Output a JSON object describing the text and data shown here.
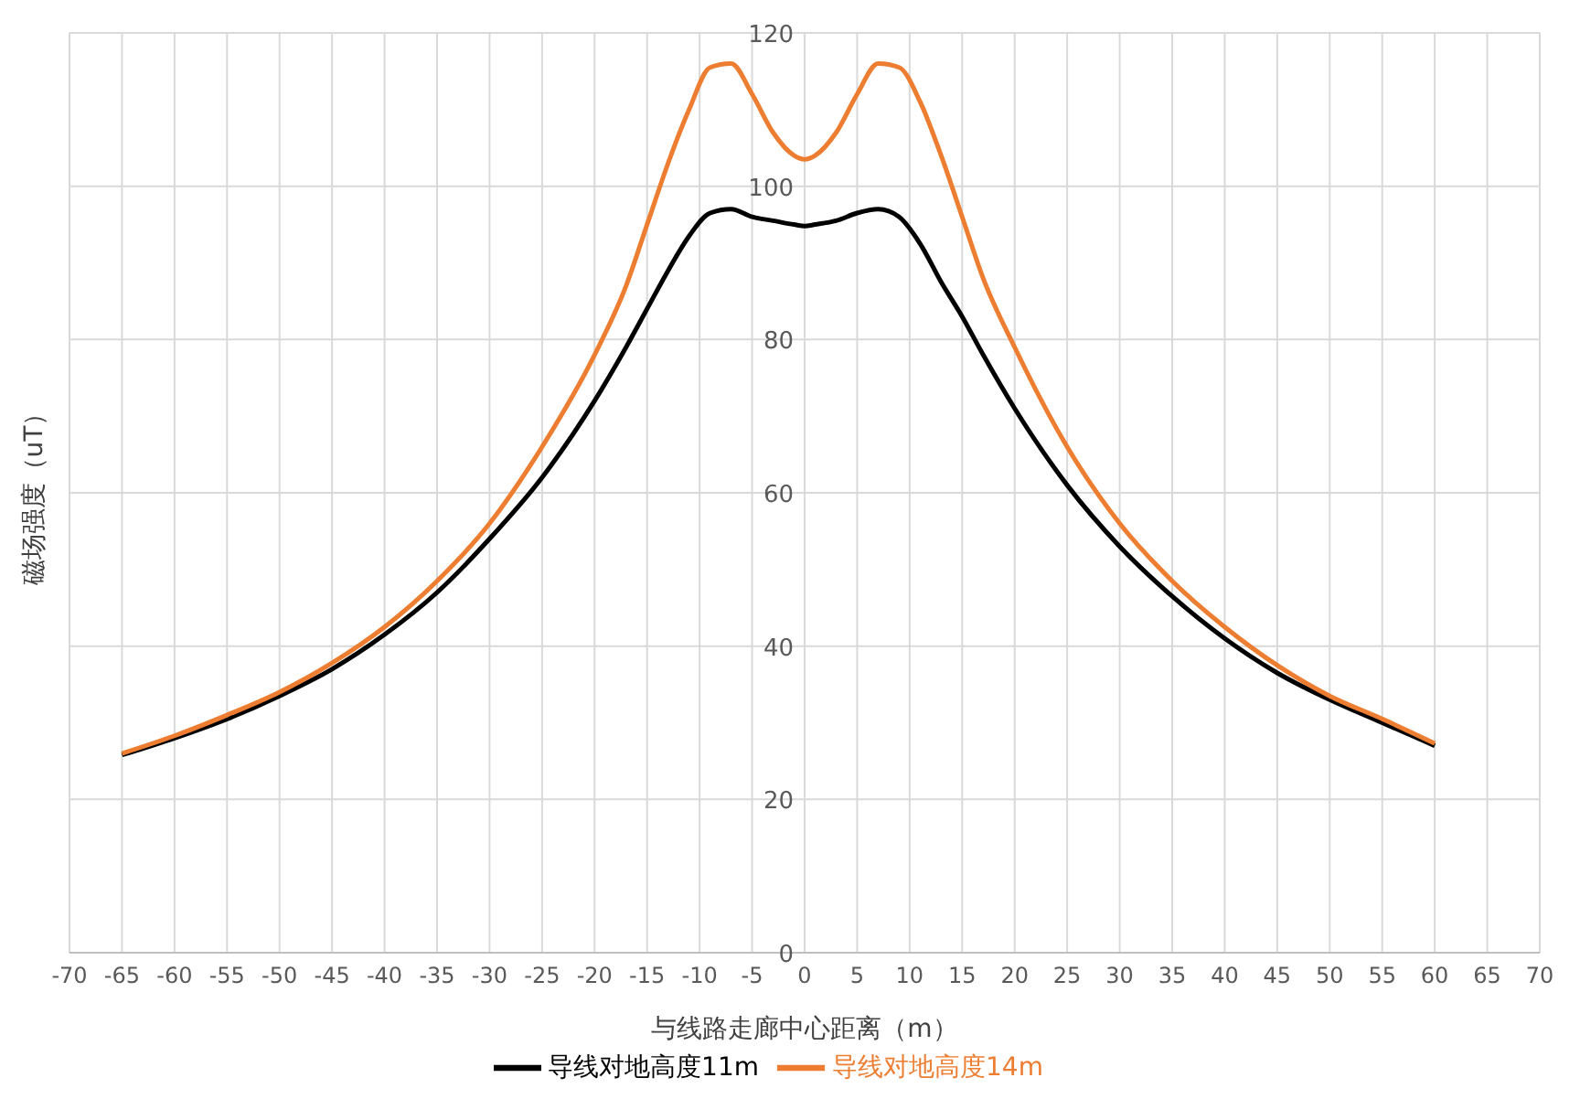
{
  "chart_data": {
    "type": "line",
    "xlabel": "与线路走廊中心距离（m）",
    "ylabel": "磁场强度（uT）",
    "x": [
      -65,
      -60,
      -55,
      -50,
      -45,
      -40,
      -35,
      -30,
      -25,
      -20,
      -17,
      -15,
      -13,
      -11,
      -9,
      -7,
      -5,
      -3,
      -1,
      0,
      1,
      3,
      5,
      7,
      9,
      11,
      13,
      15,
      17,
      20,
      25,
      30,
      35,
      40,
      45,
      50,
      55,
      60
    ],
    "series": [
      {
        "name": "导线对地高度11m",
        "color": "#000000",
        "values": [
          25.8,
          28,
          30.5,
          33.5,
          37,
          41.5,
          47,
          54,
          62,
          72,
          79,
          84,
          89,
          93.5,
          96.5,
          97,
          96,
          95.5,
          95,
          94.8,
          95,
          95.5,
          96.5,
          97,
          96,
          92.5,
          87.5,
          83,
          78,
          71,
          61,
          53,
          46.5,
          41,
          36.5,
          33,
          30,
          27
        ]
      },
      {
        "name": "导线对地高度14m",
        "color": "#ed7d31",
        "values": [
          26,
          28.3,
          31,
          34,
          37.8,
          42.5,
          48.5,
          56,
          66,
          78,
          87,
          95,
          103,
          110,
          115.5,
          116,
          112,
          107,
          104,
          103.5,
          104,
          107,
          112,
          116,
          115.5,
          111,
          104,
          96,
          88,
          79,
          66,
          56,
          48.5,
          42.5,
          37.5,
          33.5,
          30.5,
          27.3
        ]
      }
    ],
    "xlim": [
      -70,
      70
    ],
    "xticks": [
      -70,
      -65,
      -60,
      -55,
      -50,
      -45,
      -40,
      -35,
      -30,
      -25,
      -20,
      -15,
      -10,
      -5,
      0,
      5,
      10,
      15,
      20,
      25,
      30,
      35,
      40,
      45,
      50,
      55,
      60,
      65,
      70
    ],
    "ylim": [
      0,
      120
    ],
    "yticks": [
      0,
      20,
      40,
      60,
      80,
      100,
      120
    ],
    "grid": true,
    "legend": "bottom",
    "marker": "none",
    "line_style": "solid"
  }
}
